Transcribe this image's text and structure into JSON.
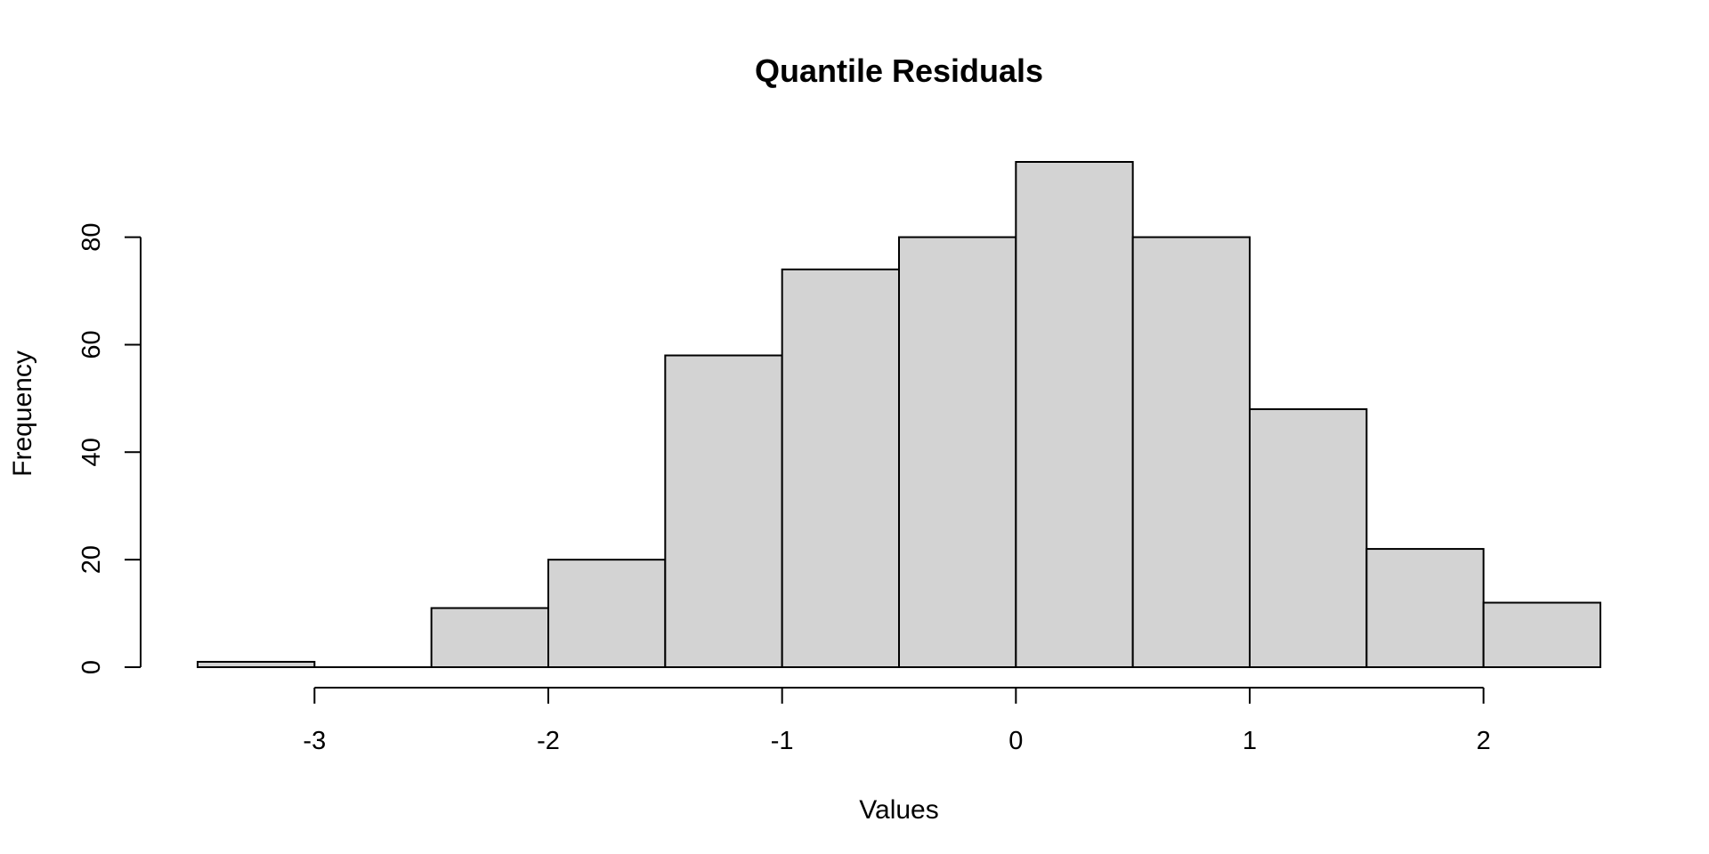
{
  "chart_data": {
    "type": "bar",
    "title": "Quantile Residuals",
    "xlabel": "Values",
    "ylabel": "Frequency",
    "bins": [
      {
        "start": -3.5,
        "end": -3.0,
        "count": 1
      },
      {
        "start": -3.0,
        "end": -2.5,
        "count": 0
      },
      {
        "start": -2.5,
        "end": -2.0,
        "count": 11
      },
      {
        "start": -2.0,
        "end": -1.5,
        "count": 20
      },
      {
        "start": -1.5,
        "end": -1.0,
        "count": 58
      },
      {
        "start": -1.0,
        "end": -0.5,
        "count": 74
      },
      {
        "start": -0.5,
        "end": 0.0,
        "count": 80
      },
      {
        "start": 0.0,
        "end": 0.5,
        "count": 94
      },
      {
        "start": 0.5,
        "end": 1.0,
        "count": 80
      },
      {
        "start": 1.0,
        "end": 1.5,
        "count": 48
      },
      {
        "start": 1.5,
        "end": 2.0,
        "count": 22
      },
      {
        "start": 2.0,
        "end": 2.5,
        "count": 12
      }
    ],
    "x_ticks": [
      -3,
      -2,
      -1,
      0,
      1,
      2
    ],
    "x_tick_labels": [
      "-3",
      "-2",
      "-1",
      "0",
      "1",
      "2"
    ],
    "y_ticks": [
      0,
      20,
      40,
      60,
      80
    ],
    "y_tick_labels": [
      "0",
      "20",
      "40",
      "60",
      "80"
    ],
    "xlim": [
      -3.5,
      2.5
    ],
    "ylim": [
      0,
      94
    ],
    "bar_color": "#d3d3d3",
    "grid": false
  }
}
